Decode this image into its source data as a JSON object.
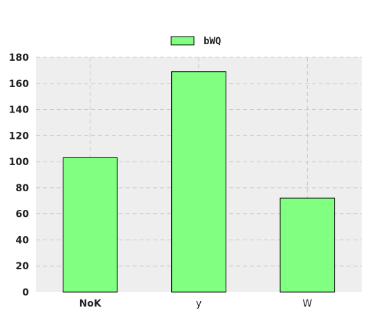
{
  "chart_data": {
    "type": "bar",
    "categories": [
      "NoK",
      "y",
      "W"
    ],
    "series": [
      {
        "name": "bWQ",
        "values": [
          103,
          169,
          72
        ],
        "color": "#80ff80"
      }
    ],
    "ylim": [
      0,
      180
    ],
    "yticks": [
      0,
      20,
      40,
      60,
      80,
      100,
      120,
      140,
      160,
      180
    ],
    "ytick_labels": [
      "0",
      "20",
      "40",
      "60",
      "80",
      "100",
      "120",
      "140",
      "160",
      "180"
    ],
    "grid": true,
    "legend": "top-center",
    "background": "#eeeeee",
    "grid_color": "#c8c8c8"
  }
}
